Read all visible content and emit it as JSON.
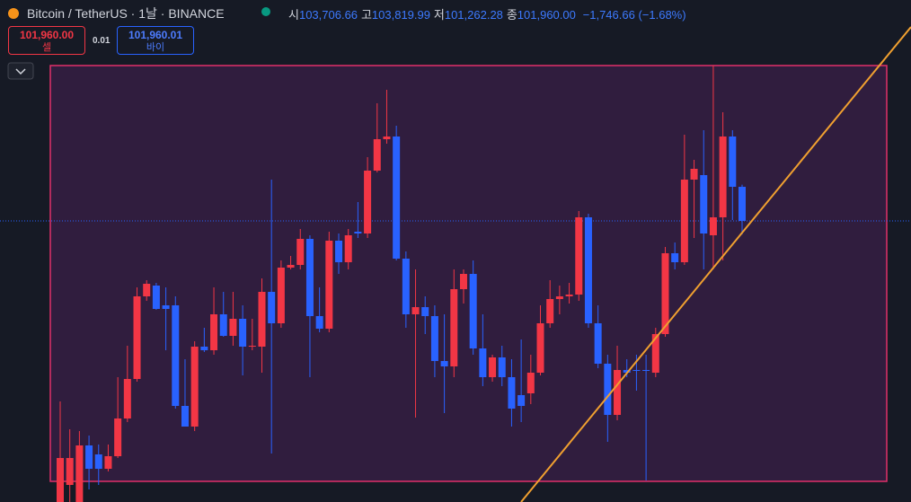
{
  "header": {
    "title": "Bitcoin / TetherUS · 1날 · BINANCE",
    "ohlc": [
      {
        "label": "시",
        "value": "103,706.66"
      },
      {
        "label": "고",
        "value": "103,819.99"
      },
      {
        "label": "저",
        "value": "101,262.28"
      },
      {
        "label": "종",
        "value": "101,960.00"
      }
    ],
    "change": "−1,746.66 (−1.68%)"
  },
  "trade": {
    "sell_price": "101,960.00",
    "sell_label": "셀",
    "spread": "0.01",
    "buy_price": "101,960.01",
    "buy_label": "바이"
  },
  "chart_data": {
    "type": "candlestick",
    "ylim": [
      87562,
      113276
    ],
    "up_color": "#f23645",
    "down_color": "#2962ff",
    "open": [
      87562,
      88436,
      87562,
      90460,
      90000,
      89264,
      89908,
      91840,
      93864,
      98096,
      98648,
      97636,
      97636,
      92484,
      91426,
      95520,
      95336,
      97176,
      96072,
      96946,
      95520,
      95520,
      98326,
      96716,
      99568,
      99706,
      101040,
      97084,
      96440,
      100948,
      99844,
      101408,
      101316,
      104536,
      106146,
      106284,
      100028,
      97176,
      97544,
      97084,
      94784,
      94508,
      98464,
      99246,
      95428,
      93956,
      94968,
      93956,
      93036,
      93128,
      94186,
      96716,
      97958,
      98096,
      98188,
      102144,
      96716,
      94646,
      92024,
      94324,
      94324,
      94324,
      94186,
      96164,
      100304,
      99844,
      104076,
      104306,
      101224,
      102144,
      106284,
      103706.66
    ],
    "high": [
      92714,
      91288,
      91196,
      90966,
      90506,
      90506,
      93956,
      95566,
      98556,
      98924,
      98786,
      98556,
      98096,
      94876,
      95796,
      96486,
      98556,
      98326,
      98326,
      97636,
      96946,
      99016,
      104076,
      99936,
      100166,
      101546,
      101224,
      98556,
      101408,
      101316,
      101546,
      102926,
      105226,
      107986,
      108676,
      106836,
      100396,
      99476,
      98096,
      97636,
      97176,
      99476,
      99476,
      99936,
      97176,
      95106,
      95566,
      94876,
      95888,
      95106,
      97636,
      98924,
      98648,
      98786,
      102466,
      102328,
      97636,
      95106,
      95566,
      94876,
      95106,
      95106,
      96486,
      100626,
      100856,
      106376,
      105088,
      106606,
      109918,
      107526,
      106606,
      103819.99
    ],
    "low": [
      87562,
      87562,
      87562,
      88206,
      88436,
      89126,
      89816,
      91656,
      93726,
      97866,
      97406,
      95336,
      92346,
      91426,
      91196,
      95244,
      95106,
      96026,
      95566,
      94048,
      95336,
      94186,
      90046,
      96486,
      99476,
      99476,
      93956,
      96256,
      96256,
      99246,
      99476,
      101086,
      101086,
      104444,
      105916,
      99936,
      96486,
      91886,
      96164,
      93956,
      92116,
      93956,
      97728,
      95106,
      93496,
      93726,
      93496,
      91426,
      91656,
      92576,
      94048,
      96486,
      97176,
      97728,
      97866,
      96486,
      94416,
      90644,
      91748,
      93956,
      93266,
      88666,
      93956,
      96026,
      99476,
      99706,
      101086,
      99476,
      99476,
      99936,
      102006,
      101262.28
    ],
    "close": [
      89816,
      89816,
      90460,
      89264,
      89264,
      89908,
      91840,
      93864,
      98096,
      98740,
      97452,
      97452,
      92484,
      91426,
      95520,
      95336,
      97176,
      96072,
      96946,
      95520,
      95566,
      98326,
      96716,
      99568,
      99706,
      101040,
      97084,
      96440,
      100948,
      99844,
      101224,
      101316,
      104536,
      106146,
      106284,
      100028,
      97176,
      97544,
      97084,
      94784,
      94508,
      98464,
      99246,
      95428,
      93956,
      94968,
      93956,
      92346,
      92484,
      94186,
      96716,
      97958,
      98096,
      98188,
      102144,
      96716,
      94646,
      92024,
      94324,
      94186,
      94278,
      94278,
      96164,
      100304,
      99844,
      104076,
      104628,
      101316,
      102144,
      106284,
      103708,
      101960
    ]
  }
}
